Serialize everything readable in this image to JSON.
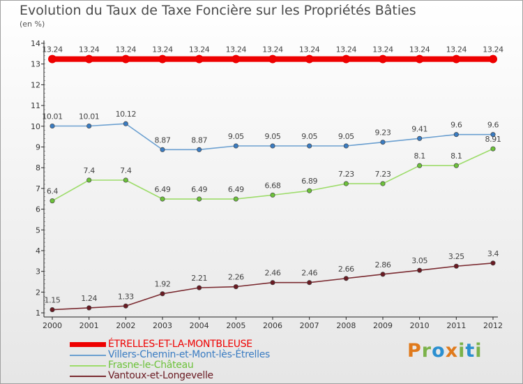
{
  "title": "Evolution du Taux de Taxe Foncière sur les Propriétés Bâties",
  "unit": "(en %)",
  "logo": {
    "text": "Proxiti",
    "letter_colors": [
      "#e07a1c",
      "#7bb24a",
      "#2b8fd0",
      "#e07a1c",
      "#7bb24a",
      "#2b8fd0",
      "#7bb24a"
    ]
  },
  "chart_data": {
    "type": "line",
    "x": [
      "2000",
      "2001",
      "2002",
      "2003",
      "2004",
      "2005",
      "2006",
      "2007",
      "2008",
      "2009",
      "2010",
      "2011",
      "2012"
    ],
    "ylim": [
      0.8,
      14
    ],
    "yticks": [
      1,
      2,
      3,
      4,
      5,
      6,
      7,
      8,
      9,
      10,
      11,
      12,
      13,
      14
    ],
    "grid": false,
    "legend_position": "bottom-left",
    "series": [
      {
        "name": "ÉTRELLES-ET-LA-MONTBLEUSE",
        "color": "#ee0000",
        "values": [
          13.24,
          13.24,
          13.24,
          13.24,
          13.24,
          13.24,
          13.24,
          13.24,
          13.24,
          13.24,
          13.24,
          13.24,
          13.24
        ],
        "labels": [
          "13.24",
          "13.24",
          "13.24",
          "13.24",
          "13.24",
          "13.24",
          "13.24",
          "13.24",
          "13.24",
          "13.24",
          "13.24",
          "13.24",
          "13.24"
        ]
      },
      {
        "name": "Villers-Chemin-et-Mont-lès-Étrelles",
        "color": "#6a9fd0",
        "point_color": "#3a7cc2",
        "values": [
          10.01,
          10.01,
          10.12,
          8.87,
          8.87,
          9.05,
          9.05,
          9.05,
          9.05,
          9.23,
          9.41,
          9.6,
          9.6
        ],
        "labels": [
          "10.01",
          "10.01",
          "10.12",
          "8.87",
          "8.87",
          "9.05",
          "9.05",
          "9.05",
          "9.05",
          "9.23",
          "9.41",
          "9.6",
          "9.6"
        ]
      },
      {
        "name": "Frasne-le-Château",
        "color": "#9ddc6a",
        "point_color": "#6cc23a",
        "values": [
          6.4,
          7.4,
          7.4,
          6.49,
          6.49,
          6.49,
          6.68,
          6.89,
          7.23,
          7.23,
          8.1,
          8.1,
          8.91
        ],
        "labels": [
          "6.4",
          "7.4",
          "7.4",
          "6.49",
          "6.49",
          "6.49",
          "6.68",
          "6.89",
          "7.23",
          "7.23",
          "8.1",
          "8.1",
          "8.91"
        ]
      },
      {
        "name": "Vantoux-et-Longevelle",
        "color": "#7a2a30",
        "point_color": "#6a1a22",
        "values": [
          1.15,
          1.24,
          1.33,
          1.92,
          2.21,
          2.26,
          2.46,
          2.46,
          2.66,
          2.86,
          3.05,
          3.25,
          3.4
        ],
        "labels": [
          "1.15",
          "1.24",
          "1.33",
          "1.92",
          "2.21",
          "2.26",
          "2.46",
          "2.46",
          "2.66",
          "2.86",
          "3.05",
          "3.25",
          "3.4"
        ]
      }
    ]
  }
}
